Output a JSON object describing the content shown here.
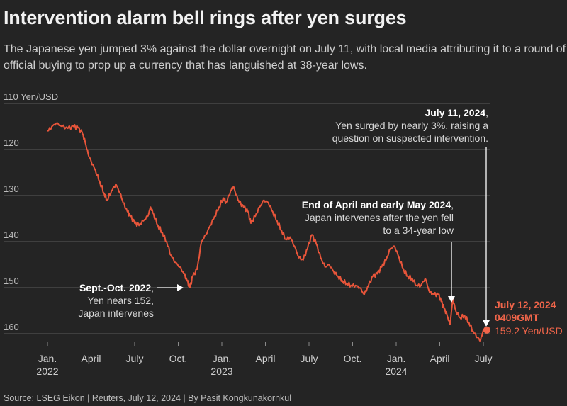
{
  "header": {
    "title": "Intervention alarm bell rings after yen surges",
    "subtitle": "The Japanese yen jumped 3% against the dollar overnight on July 11, with local media attributing it to a round of official buying to prop up a currency that has languished at 38-year lows."
  },
  "footer": {
    "source": "Source: LSEG Eikon | Reuters, July 12, 2024 | By Pasit Kongkunakornkul"
  },
  "colors": {
    "line": "#e8553a",
    "accent": "#f0654a",
    "background": "#242424"
  },
  "chart_data": {
    "type": "line",
    "title": "Intervention alarm bell rings after yen surges",
    "ylabel": "Yen/USD",
    "y_inverted": true,
    "ylim": [
      110,
      162
    ],
    "y_ticks": [
      {
        "value": 110,
        "label": "110 Yen/USD"
      },
      {
        "value": 120,
        "label": "120"
      },
      {
        "value": 130,
        "label": "130"
      },
      {
        "value": 140,
        "label": "140"
      },
      {
        "value": 150,
        "label": "150"
      },
      {
        "value": 160,
        "label": "160"
      }
    ],
    "x_ticks": [
      {
        "t": 0,
        "label": "Jan.",
        "sublabel": "2022"
      },
      {
        "t": 3,
        "label": "April",
        "sublabel": ""
      },
      {
        "t": 6,
        "label": "July",
        "sublabel": ""
      },
      {
        "t": 9,
        "label": "Oct.",
        "sublabel": ""
      },
      {
        "t": 12,
        "label": "Jan.",
        "sublabel": "2023"
      },
      {
        "t": 15,
        "label": "April",
        "sublabel": ""
      },
      {
        "t": 18,
        "label": "July",
        "sublabel": ""
      },
      {
        "t": 21,
        "label": "Oct.",
        "sublabel": ""
      },
      {
        "t": 24,
        "label": "Jan.",
        "sublabel": "2024"
      },
      {
        "t": 27,
        "label": "April",
        "sublabel": ""
      },
      {
        "t": 30,
        "label": "July",
        "sublabel": ""
      }
    ],
    "x_unit": "months since Jan. 2022",
    "series": [
      {
        "name": "Yen per USD",
        "points": [
          [
            0,
            116.0
          ],
          [
            0.3,
            115.0
          ],
          [
            0.6,
            114.3
          ],
          [
            1.0,
            115.0
          ],
          [
            1.4,
            115.4
          ],
          [
            1.8,
            115.0
          ],
          [
            2.1,
            115.3
          ],
          [
            2.4,
            116.5
          ],
          [
            2.6,
            118.5
          ],
          [
            2.8,
            121.0
          ],
          [
            3.0,
            122.5
          ],
          [
            3.3,
            124.5
          ],
          [
            3.6,
            127.0
          ],
          [
            3.9,
            129.5
          ],
          [
            4.1,
            131.0
          ],
          [
            4.4,
            129.0
          ],
          [
            4.7,
            127.5
          ],
          [
            5.0,
            129.5
          ],
          [
            5.2,
            131.5
          ],
          [
            5.5,
            133.5
          ],
          [
            5.7,
            134.5
          ],
          [
            6.0,
            136.0
          ],
          [
            6.3,
            136.5
          ],
          [
            6.6,
            135.5
          ],
          [
            6.9,
            134.5
          ],
          [
            7.1,
            132.5
          ],
          [
            7.3,
            134.0
          ],
          [
            7.6,
            136.5
          ],
          [
            7.9,
            138.0
          ],
          [
            8.2,
            140.0
          ],
          [
            8.5,
            143.0
          ],
          [
            8.8,
            144.5
          ],
          [
            9.1,
            145.5
          ],
          [
            9.4,
            147.0
          ],
          [
            9.6,
            148.5
          ],
          [
            9.8,
            150.0
          ],
          [
            10.0,
            147.5
          ],
          [
            10.3,
            146.0
          ],
          [
            10.6,
            140.0
          ],
          [
            10.9,
            138.5
          ],
          [
            11.2,
            136.5
          ],
          [
            11.5,
            134.5
          ],
          [
            11.8,
            132.5
          ],
          [
            12.1,
            130.5
          ],
          [
            12.3,
            131.5
          ],
          [
            12.6,
            129.0
          ],
          [
            12.8,
            128.0
          ],
          [
            13.0,
            130.0
          ],
          [
            13.2,
            131.5
          ],
          [
            13.5,
            132.5
          ],
          [
            13.8,
            133.5
          ],
          [
            14.0,
            136.0
          ],
          [
            14.3,
            134.5
          ],
          [
            14.6,
            132.5
          ],
          [
            14.9,
            131.0
          ],
          [
            15.2,
            131.5
          ],
          [
            15.5,
            133.5
          ],
          [
            15.8,
            135.5
          ],
          [
            16.1,
            137.5
          ],
          [
            16.4,
            139.5
          ],
          [
            16.7,
            139.0
          ],
          [
            17.0,
            141.0
          ],
          [
            17.3,
            143.5
          ],
          [
            17.6,
            144.0
          ],
          [
            17.9,
            141.5
          ],
          [
            18.2,
            138.5
          ],
          [
            18.5,
            140.5
          ],
          [
            18.8,
            143.5
          ],
          [
            19.1,
            145.5
          ],
          [
            19.4,
            145.0
          ],
          [
            19.7,
            146.5
          ],
          [
            20.0,
            147.5
          ],
          [
            20.3,
            148.5
          ],
          [
            20.6,
            149.0
          ],
          [
            20.9,
            149.5
          ],
          [
            21.2,
            149.5
          ],
          [
            21.5,
            150.0
          ],
          [
            21.8,
            151.5
          ],
          [
            22.1,
            149.5
          ],
          [
            22.4,
            147.5
          ],
          [
            22.7,
            147.0
          ],
          [
            23.0,
            145.5
          ],
          [
            23.3,
            144.0
          ],
          [
            23.6,
            141.5
          ],
          [
            23.9,
            141.0
          ],
          [
            24.2,
            143.5
          ],
          [
            24.5,
            146.0
          ],
          [
            24.8,
            147.5
          ],
          [
            25.1,
            148.0
          ],
          [
            25.4,
            149.5
          ],
          [
            25.7,
            149.5
          ],
          [
            26.0,
            148.0
          ],
          [
            26.3,
            151.0
          ],
          [
            26.6,
            151.5
          ],
          [
            26.9,
            151.5
          ],
          [
            27.1,
            153.0
          ],
          [
            27.3,
            154.5
          ],
          [
            27.5,
            156.0
          ],
          [
            27.7,
            158.0
          ],
          [
            27.9,
            152.5
          ],
          [
            28.1,
            155.0
          ],
          [
            28.4,
            156.5
          ],
          [
            28.7,
            156.0
          ],
          [
            29.0,
            157.5
          ],
          [
            29.3,
            159.5
          ],
          [
            29.6,
            160.8
          ],
          [
            29.8,
            161.5
          ],
          [
            30.0,
            159.2
          ]
        ]
      }
    ],
    "end_point": {
      "t": 30.0,
      "value": 159.2,
      "label": "159.2 Yen/USD"
    },
    "annotations": [
      {
        "id": "jul2024",
        "bold": "July 11, 2024",
        "suffix": ",",
        "lines": [
          "Yen surged by nearly 3%, raising a",
          "question on suspected intervention."
        ]
      },
      {
        "id": "apr2024",
        "bold": "End of April and early May 2024",
        "suffix": ",",
        "lines": [
          "Japan intervenes after the yen fell",
          "to a 34-year low"
        ]
      },
      {
        "id": "oct2022",
        "bold": "Sept.-Oct. 2022",
        "suffix": ",",
        "lines": [
          "Yen nears 152,",
          "Japan intervenes"
        ]
      },
      {
        "id": "now",
        "bold": "July 12, 2024",
        "suffix": "",
        "lines": [
          "0409GMT"
        ]
      }
    ]
  }
}
